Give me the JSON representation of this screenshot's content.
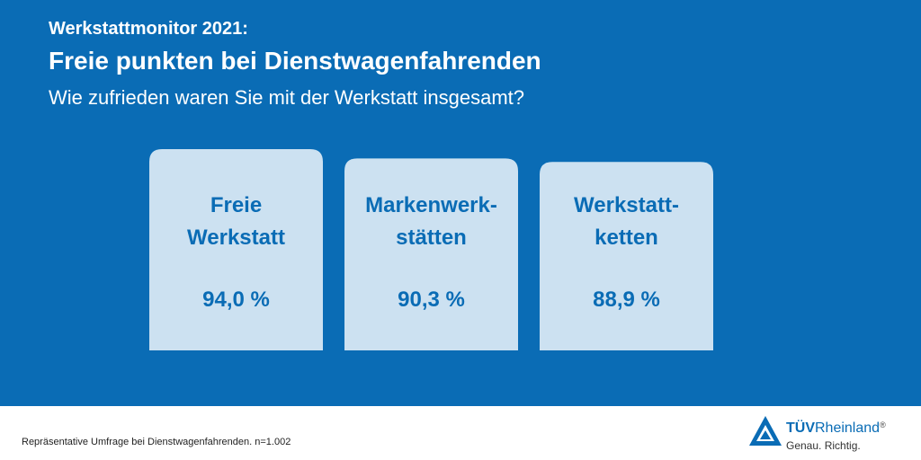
{
  "header": {
    "kicker": "Werkstattmonitor 2021:",
    "title": "Freie punkten bei Dienstwagenfahrenden",
    "question": "Wie zufrieden waren Sie mit der Werkstatt insgesamt?"
  },
  "chart_data": {
    "type": "bar",
    "categories": [
      "Freie Werkstatt",
      "Markenwerkstätten",
      "Werkstattketten"
    ],
    "category_lines": [
      [
        "Freie",
        "Werkstatt"
      ],
      [
        "Markenwerk-",
        "stätten"
      ],
      [
        "Werkstatt-",
        "ketten"
      ]
    ],
    "values": [
      94.0,
      90.3,
      88.9
    ],
    "value_labels": [
      "94,0 %",
      "90,3 %",
      "88,9 %"
    ],
    "title": "Wie zufrieden waren Sie mit der Werkstatt insgesamt?",
    "xlabel": "",
    "ylabel": "",
    "grid": false,
    "colors": {
      "background": "#0a6cb5",
      "bar": "#cce1f1",
      "text": "#0a6cb5"
    }
  },
  "footer": {
    "note": "Repräsentative Umfrage bei Dienstwagenfahrenden. n=1.002"
  },
  "logo": {
    "brand_bold": "TÜV",
    "brand_rest": "Rheinland",
    "registered": "®",
    "tagline": "Genau. Richtig.",
    "icon": "tuv-triangle-logo-icon"
  }
}
